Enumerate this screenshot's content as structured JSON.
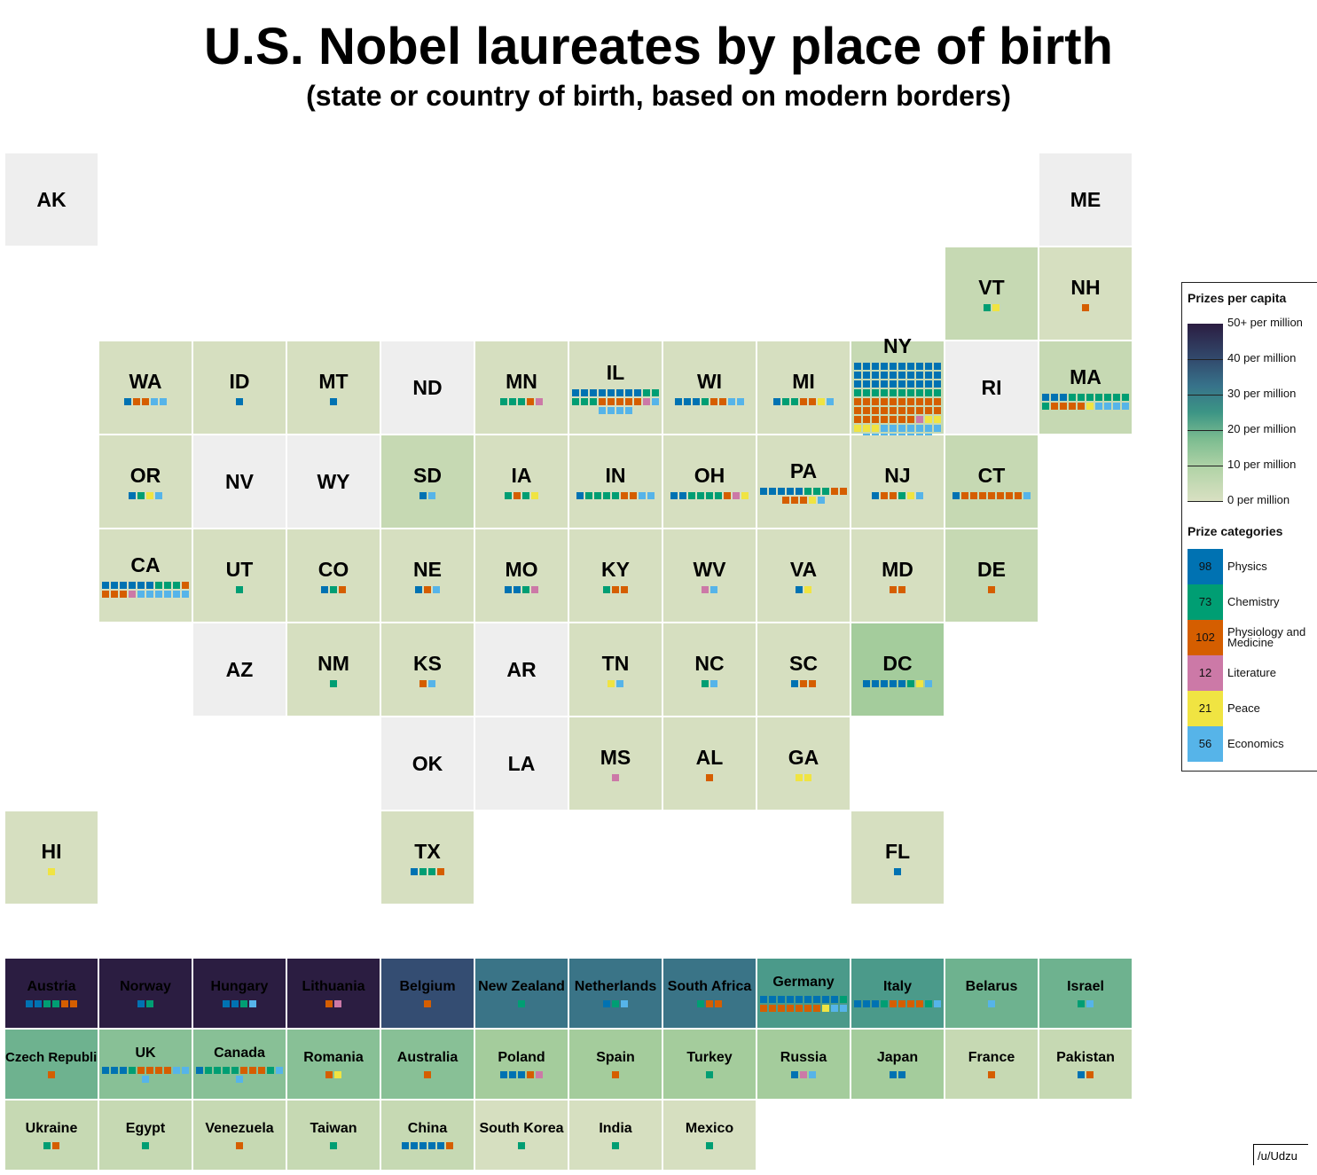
{
  "title": "U.S. Nobel laureates by place of birth",
  "subtitle": "(state or country of birth, based on modern borders)",
  "credit": "/u/Udzu",
  "chart_data": {
    "type": "tile-map",
    "title": "U.S. Nobel laureates by place of birth",
    "subtitle": "(state or country of birth, based on modern borders)",
    "legend": {
      "placement": "right",
      "scale_title": "Prizes per capita",
      "scale_labels": [
        "50+ per million",
        "40 per million",
        "30 per million",
        "20 per million",
        "10 per million",
        "0 per million"
      ],
      "categories_title": "Prize categories",
      "categories": [
        {
          "count": "98",
          "name": "Physics",
          "code": "P",
          "color": "#0072b2"
        },
        {
          "count": "73",
          "name": "Chemistry",
          "code": "C",
          "color": "#009e73"
        },
        {
          "count": "102",
          "name": "Physiology and Medicine",
          "code": "M",
          "color": "#d55e00"
        },
        {
          "count": "12",
          "name": "Literature",
          "code": "L",
          "color": "#cc79a7"
        },
        {
          "count": "21",
          "name": "Peace",
          "code": "E",
          "color": "#f0e442"
        },
        {
          "count": "56",
          "name": "Economics",
          "code": "O",
          "color": "#56b4e9"
        }
      ]
    },
    "per_capita_colors": {
      "none": "#eeeeee",
      "0-10": "#d6dfc0",
      "10-15": "#c6d9b3",
      "15-20": "#a4cc9c",
      "20-25": "#88c096",
      "25-30": "#6eb28f",
      "30-35": "#4b9a8a",
      "35-40": "#3a7487",
      "40-50": "#344d72",
      "50+": "#2b1d41"
    },
    "states": [
      {
        "label": "AK",
        "col": 0,
        "row": 0,
        "band": "none",
        "prizes": ""
      },
      {
        "label": "ME",
        "col": 11,
        "row": 0,
        "band": "none",
        "prizes": ""
      },
      {
        "label": "VT",
        "col": 10,
        "row": 1,
        "band": "10-15",
        "prizes": "CE"
      },
      {
        "label": "NH",
        "col": 11,
        "row": 1,
        "band": "0-10",
        "prizes": "M"
      },
      {
        "label": "WA",
        "col": 1,
        "row": 2,
        "band": "0-10",
        "prizes": "PMMOO"
      },
      {
        "label": "ID",
        "col": 2,
        "row": 2,
        "band": "0-10",
        "prizes": "P"
      },
      {
        "label": "MT",
        "col": 3,
        "row": 2,
        "band": "0-10",
        "prizes": "P"
      },
      {
        "label": "ND",
        "col": 4,
        "row": 2,
        "band": "none",
        "prizes": ""
      },
      {
        "label": "MN",
        "col": 5,
        "row": 2,
        "band": "0-10",
        "prizes": "CCCML"
      },
      {
        "label": "IL",
        "col": 6,
        "row": 2,
        "band": "0-10",
        "prizes": "PPPPPPPPCCCCCMMMMMLOOOOO"
      },
      {
        "label": "WI",
        "col": 7,
        "row": 2,
        "band": "0-10",
        "prizes": "PPPCMMOO"
      },
      {
        "label": "MI",
        "col": 8,
        "row": 2,
        "band": "0-10",
        "prizes": "PCCMMEO"
      },
      {
        "label": "NY",
        "col": 9,
        "row": 2,
        "band": "10-15",
        "prizes": "PPPPPPPPPPPPPPPPPPPPPPPPPPPPPPCCCCCCCCCCMMMMMMMMMMMMMMMMMMMMMMMMMMMLEEEEEOOOOOOOOOOOOOOO"
      },
      {
        "label": "RI",
        "col": 10,
        "row": 2,
        "band": "none",
        "prizes": ""
      },
      {
        "label": "MA",
        "col": 11,
        "row": 2,
        "band": "10-15",
        "prizes": "PPPCCCCCCCCMMMMEOOOO"
      },
      {
        "label": "OR",
        "col": 1,
        "row": 3,
        "band": "0-10",
        "prizes": "PCEO"
      },
      {
        "label": "NV",
        "col": 2,
        "row": 3,
        "band": "none",
        "prizes": ""
      },
      {
        "label": "WY",
        "col": 3,
        "row": 3,
        "band": "none",
        "prizes": ""
      },
      {
        "label": "SD",
        "col": 4,
        "row": 3,
        "band": "10-15",
        "prizes": "PO"
      },
      {
        "label": "IA",
        "col": 5,
        "row": 3,
        "band": "0-10",
        "prizes": "CMCE"
      },
      {
        "label": "IN",
        "col": 6,
        "row": 3,
        "band": "0-10",
        "prizes": "PCCCCMMOO"
      },
      {
        "label": "OH",
        "col": 7,
        "row": 3,
        "band": "0-10",
        "prizes": "PPCCCCMLE"
      },
      {
        "label": "PA",
        "col": 8,
        "row": 3,
        "band": "0-10",
        "prizes": "PPPPPCCCMMMMMEO"
      },
      {
        "label": "NJ",
        "col": 9,
        "row": 3,
        "band": "0-10",
        "prizes": "PMMCEO"
      },
      {
        "label": "CT",
        "col": 10,
        "row": 3,
        "band": "10-15",
        "prizes": "PMMMMMMMO"
      },
      {
        "label": "CA",
        "col": 1,
        "row": 4,
        "band": "0-10",
        "prizes": "PPPPPPCCCMMMMLOOOOOO"
      },
      {
        "label": "UT",
        "col": 2,
        "row": 4,
        "band": "0-10",
        "prizes": "C"
      },
      {
        "label": "CO",
        "col": 3,
        "row": 4,
        "band": "0-10",
        "prizes": "PCM"
      },
      {
        "label": "NE",
        "col": 4,
        "row": 4,
        "band": "0-10",
        "prizes": "PMO"
      },
      {
        "label": "MO",
        "col": 5,
        "row": 4,
        "band": "0-10",
        "prizes": "PPCL"
      },
      {
        "label": "KY",
        "col": 6,
        "row": 4,
        "band": "0-10",
        "prizes": "CMM"
      },
      {
        "label": "WV",
        "col": 7,
        "row": 4,
        "band": "0-10",
        "prizes": "LO"
      },
      {
        "label": "VA",
        "col": 8,
        "row": 4,
        "band": "0-10",
        "prizes": "PE"
      },
      {
        "label": "MD",
        "col": 9,
        "row": 4,
        "band": "0-10",
        "prizes": "MM"
      },
      {
        "label": "DE",
        "col": 10,
        "row": 4,
        "band": "10-15",
        "prizes": "M"
      },
      {
        "label": "AZ",
        "col": 2,
        "row": 5,
        "band": "none",
        "prizes": ""
      },
      {
        "label": "NM",
        "col": 3,
        "row": 5,
        "band": "0-10",
        "prizes": "C"
      },
      {
        "label": "KS",
        "col": 4,
        "row": 5,
        "band": "0-10",
        "prizes": "MO"
      },
      {
        "label": "AR",
        "col": 5,
        "row": 5,
        "band": "none",
        "prizes": ""
      },
      {
        "label": "TN",
        "col": 6,
        "row": 5,
        "band": "0-10",
        "prizes": "EO"
      },
      {
        "label": "NC",
        "col": 7,
        "row": 5,
        "band": "0-10",
        "prizes": "CO"
      },
      {
        "label": "SC",
        "col": 8,
        "row": 5,
        "band": "0-10",
        "prizes": "PMM"
      },
      {
        "label": "DC",
        "col": 9,
        "row": 5,
        "band": "15-20",
        "prizes": "PPPPPCEO"
      },
      {
        "label": "OK",
        "col": 4,
        "row": 6,
        "band": "none",
        "prizes": ""
      },
      {
        "label": "LA",
        "col": 5,
        "row": 6,
        "band": "none",
        "prizes": ""
      },
      {
        "label": "MS",
        "col": 6,
        "row": 6,
        "band": "0-10",
        "prizes": "L"
      },
      {
        "label": "AL",
        "col": 7,
        "row": 6,
        "band": "0-10",
        "prizes": "M"
      },
      {
        "label": "GA",
        "col": 8,
        "row": 6,
        "band": "0-10",
        "prizes": "EE"
      },
      {
        "label": "HI",
        "col": 0,
        "row": 7,
        "band": "0-10",
        "prizes": "E"
      },
      {
        "label": "TX",
        "col": 4,
        "row": 7,
        "band": "0-10",
        "prizes": "PCCM"
      },
      {
        "label": "FL",
        "col": 9,
        "row": 7,
        "band": "0-10",
        "prizes": "P"
      }
    ],
    "countries": [
      {
        "label": "Austria",
        "band": "50+",
        "prizes": "PPCCMM"
      },
      {
        "label": "Norway",
        "band": "50+",
        "prizes": "PC"
      },
      {
        "label": "Hungary",
        "band": "50+",
        "prizes": "PPCO"
      },
      {
        "label": "Lithuania",
        "band": "50+",
        "prizes": "ML"
      },
      {
        "label": "Belgium",
        "band": "40-50",
        "prizes": "M"
      },
      {
        "label": "New Zealand",
        "band": "35-40",
        "prizes": "C"
      },
      {
        "label": "Netherlands",
        "band": "35-40",
        "prizes": "PCO"
      },
      {
        "label": "South Africa",
        "band": "35-40",
        "prizes": "CMM"
      },
      {
        "label": "Germany",
        "band": "30-35",
        "prizes": "PPPPPPPPPCMMMMMMMEOO"
      },
      {
        "label": "Italy",
        "band": "30-35",
        "prizes": "PPPCMMMMCO"
      },
      {
        "label": "Belarus",
        "band": "25-30",
        "prizes": "O"
      },
      {
        "label": "Israel",
        "band": "25-30",
        "prizes": "CO"
      },
      {
        "label": "Czech Republic",
        "band": "25-30",
        "prizes": "M"
      },
      {
        "label": "UK",
        "band": "20-25",
        "prizes": "PPPCMMMMOOO"
      },
      {
        "label": "Canada",
        "band": "20-25",
        "prizes": "PCCCCMMMCOO"
      },
      {
        "label": "Romania",
        "band": "20-25",
        "prizes": "ME"
      },
      {
        "label": "Australia",
        "band": "20-25",
        "prizes": "M"
      },
      {
        "label": "Poland",
        "band": "15-20",
        "prizes": "PPPML"
      },
      {
        "label": "Spain",
        "band": "15-20",
        "prizes": "M"
      },
      {
        "label": "Turkey",
        "band": "15-20",
        "prizes": "C"
      },
      {
        "label": "Russia",
        "band": "15-20",
        "prizes": "PLO"
      },
      {
        "label": "Japan",
        "band": "15-20",
        "prizes": "PP"
      },
      {
        "label": "France",
        "band": "10-15",
        "prizes": "M"
      },
      {
        "label": "Pakistan",
        "band": "10-15",
        "prizes": "PM"
      },
      {
        "label": "Ukraine",
        "band": "10-15",
        "prizes": "CM"
      },
      {
        "label": "Egypt",
        "band": "10-15",
        "prizes": "C"
      },
      {
        "label": "Venezuela",
        "band": "10-15",
        "prizes": "M"
      },
      {
        "label": "Taiwan",
        "band": "10-15",
        "prizes": "C"
      },
      {
        "label": "China",
        "band": "10-15",
        "prizes": "PPPPPM"
      },
      {
        "label": "South Korea",
        "band": "0-10",
        "prizes": "C"
      },
      {
        "label": "India",
        "band": "0-10",
        "prizes": "C"
      },
      {
        "label": "Mexico",
        "band": "0-10",
        "prizes": "C"
      }
    ]
  }
}
